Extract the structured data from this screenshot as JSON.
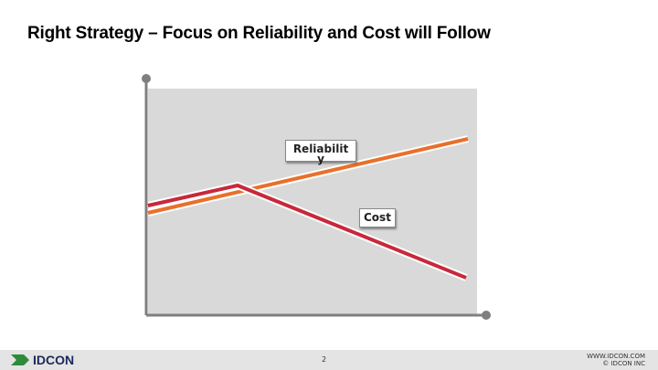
{
  "header": {
    "title": "Right Strategy – Focus on Reliability and Cost will Follow"
  },
  "diagram": {
    "labels": [
      "Reliability",
      "Cost"
    ]
  },
  "footer": {
    "logo": "IDCON",
    "page": "2",
    "website": "WWW.IDCON.COM",
    "copyright": "© IDCON INC"
  }
}
